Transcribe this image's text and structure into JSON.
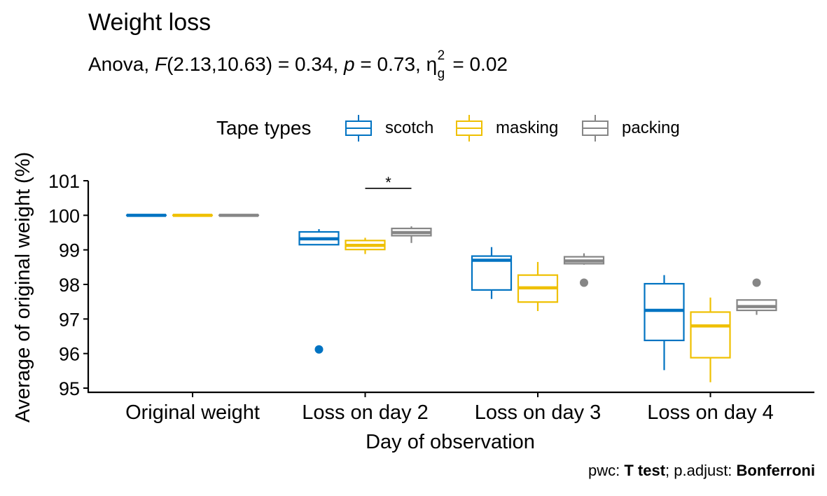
{
  "chart_data": {
    "type": "boxplot",
    "title": "Weight loss",
    "subtitle": {
      "prefix": "Anova, ",
      "F_symbol": "F",
      "F_args": "(2.13,10.63) = 0.34, ",
      "p_symbol": "p",
      "p_value": " = 0.73, ",
      "eta_symbol": "η",
      "eta_sup": "2",
      "eta_sub": "g",
      "eta_value": " = 0.02"
    },
    "xlabel": "Day of observation",
    "ylabel": "Average of original weight (%)",
    "ylim": [
      95,
      101
    ],
    "yticks": [
      "95",
      "96",
      "97",
      "98",
      "99",
      "100",
      "101"
    ],
    "categories": [
      "Original weight",
      "Loss on day 2",
      "Loss on day 3",
      "Loss on day 4"
    ],
    "legend": {
      "title": "Tape types",
      "position": "top"
    },
    "series": [
      {
        "name": "scotch",
        "color": "#0073C2",
        "boxes": [
          {
            "min": 100,
            "q1": 100,
            "median": 100,
            "q3": 100,
            "max": 100,
            "outliers": []
          },
          {
            "min": 99.15,
            "q1": 99.15,
            "median": 99.32,
            "q3": 99.52,
            "max": 99.6,
            "outliers": [
              96.12
            ]
          },
          {
            "min": 97.58,
            "q1": 97.84,
            "median": 98.7,
            "q3": 98.82,
            "max": 99.08,
            "outliers": []
          },
          {
            "min": 95.52,
            "q1": 96.38,
            "median": 97.25,
            "q3": 98.02,
            "max": 98.27,
            "outliers": []
          }
        ]
      },
      {
        "name": "masking",
        "color": "#EFC000",
        "boxes": [
          {
            "min": 100,
            "q1": 100,
            "median": 100,
            "q3": 100,
            "max": 100,
            "outliers": []
          },
          {
            "min": 98.88,
            "q1": 99.01,
            "median": 99.13,
            "q3": 99.27,
            "max": 99.35,
            "outliers": []
          },
          {
            "min": 97.23,
            "q1": 97.49,
            "median": 97.9,
            "q3": 98.27,
            "max": 98.65,
            "outliers": []
          },
          {
            "min": 95.17,
            "q1": 95.88,
            "median": 96.8,
            "q3": 97.2,
            "max": 97.62,
            "outliers": []
          }
        ]
      },
      {
        "name": "packing",
        "color": "#868686",
        "boxes": [
          {
            "min": 100,
            "q1": 100,
            "median": 100,
            "q3": 100,
            "max": 100,
            "outliers": []
          },
          {
            "min": 99.2,
            "q1": 99.41,
            "median": 99.5,
            "q3": 99.62,
            "max": 99.68,
            "outliers": []
          },
          {
            "min": 98.57,
            "q1": 98.6,
            "median": 98.68,
            "q3": 98.8,
            "max": 98.9,
            "outliers": [
              98.05
            ]
          },
          {
            "min": 97.12,
            "q1": 97.25,
            "median": 97.36,
            "q3": 97.55,
            "max": 97.55,
            "outliers": [
              98.05
            ]
          }
        ]
      }
    ],
    "significance": [
      {
        "category": "Loss on day 2",
        "from": "masking",
        "to": "packing",
        "y": 100.78,
        "label": "*"
      }
    ],
    "caption": {
      "prefix": "pwc: ",
      "test": "T test",
      "middle": "; p.adjust: ",
      "adjust": "Bonferroni"
    }
  }
}
